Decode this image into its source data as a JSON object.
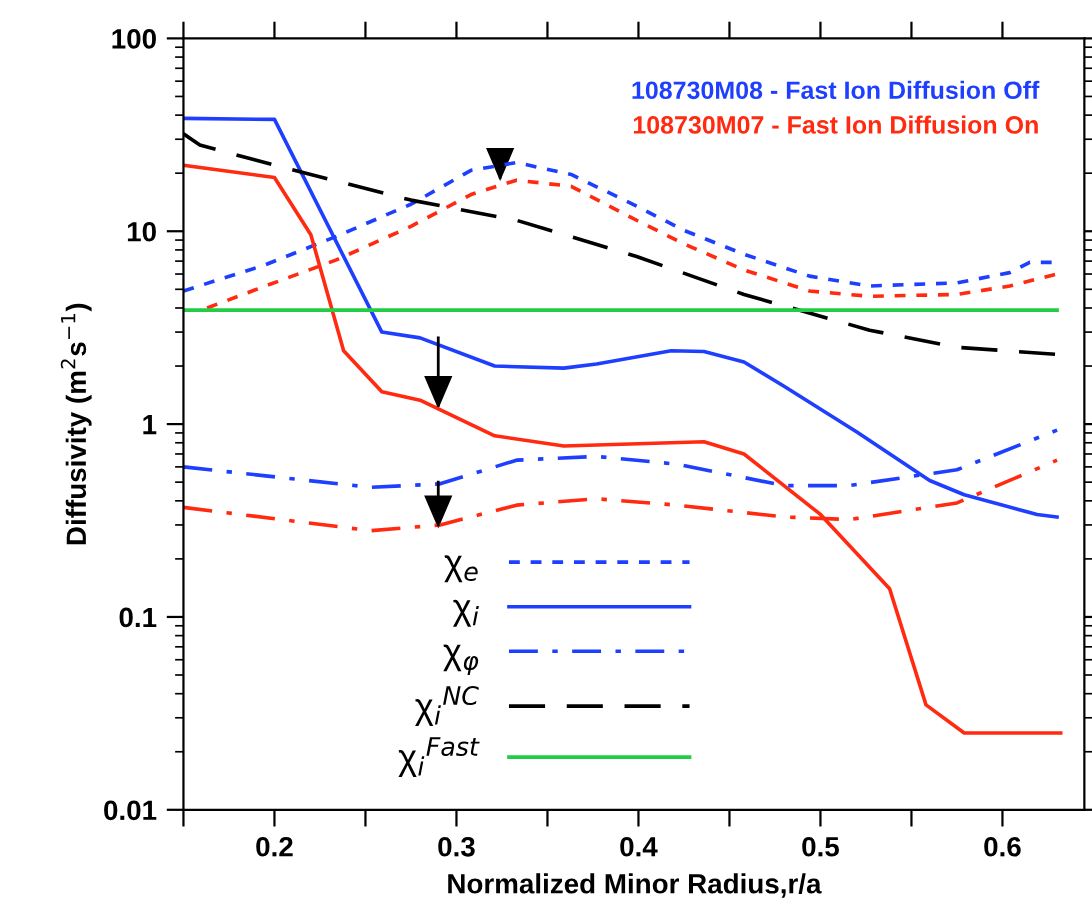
{
  "chart_data": {
    "type": "line",
    "xlabel": "Normalized Minor Radius,r/a",
    "ylabel": "Diffusivity (m$^{2}$s$^{−1}$)",
    "log": "y",
    "xlim": [
      0.15,
      0.645
    ],
    "ylim": [
      0.01,
      100
    ],
    "xticks": [
      {
        "value": 0.15,
        "label": null
      },
      0.2,
      {
        "value": 0.25,
        "label": null
      },
      0.3,
      {
        "value": 0.35,
        "label": null
      },
      0.4,
      {
        "value": 0.45,
        "label": null
      },
      0.5,
      {
        "value": 0.55,
        "label": null
      },
      0.6
    ],
    "yticks": [
      0.01,
      0.1,
      1,
      10,
      100
    ],
    "grid": false,
    "legend": "bottom",
    "annotations": [
      "108730M08 - Fast Ion Diffusion Off",
      "108730M07 - Fast Ion Diffusion On"
    ],
    "series": [
      {
        "name": "χ$_{e}$",
        "color": "#1f3fff",
        "line_style": "dashed",
        "x": [
          0.15,
          0.195,
          0.234,
          0.275,
          0.308,
          0.333,
          0.363,
          0.399,
          0.425,
          0.458,
          0.494,
          0.527,
          0.575,
          0.604,
          0.615,
          0.63
        ],
        "values": [
          4.9,
          6.7,
          9.4,
          13.8,
          20.7,
          22.7,
          19.7,
          13.5,
          10.1,
          7.6,
          5.85,
          5.2,
          5.4,
          6.1,
          6.9,
          6.9
        ]
      },
      {
        "color": "#ff2a10",
        "line_style": "dashed",
        "x": [
          0.163,
          0.195,
          0.234,
          0.275,
          0.308,
          0.333,
          0.363,
          0.399,
          0.425,
          0.458,
          0.494,
          0.527,
          0.575,
          0.604,
          0.63
        ],
        "values": [
          4.0,
          5.2,
          7.1,
          10.6,
          15.5,
          18.4,
          17.1,
          11.4,
          8.6,
          6.3,
          4.9,
          4.6,
          4.7,
          5.2,
          6.0
        ]
      },
      {
        "name": "χ$_{i}$",
        "color": "#1f3fff",
        "line_style": "solid",
        "x": [
          0.15,
          0.2,
          0.259,
          0.28,
          0.321,
          0.359,
          0.377,
          0.418,
          0.436,
          0.458,
          0.48,
          0.52,
          0.56,
          0.579,
          0.619,
          0.63
        ],
        "values": [
          38.5,
          38,
          3.0,
          2.8,
          2.0,
          1.95,
          2.05,
          2.4,
          2.38,
          2.1,
          1.57,
          0.91,
          0.51,
          0.43,
          0.34,
          0.33
        ]
      },
      {
        "color": "#ff2a10",
        "line_style": "solid",
        "x": [
          0.15,
          0.2,
          0.22,
          0.238,
          0.259,
          0.28,
          0.321,
          0.359,
          0.418,
          0.436,
          0.458,
          0.5,
          0.538,
          0.558,
          0.579,
          0.632
        ],
        "values": [
          22,
          19,
          9.6,
          2.4,
          1.47,
          1.33,
          0.87,
          0.77,
          0.8,
          0.81,
          0.7,
          0.34,
          0.14,
          0.035,
          0.025,
          0.025
        ]
      },
      {
        "name": "χ$_{φ}$",
        "color": "#1f3fff",
        "line_style": "dashdot",
        "x": [
          0.15,
          0.253,
          0.291,
          0.333,
          0.377,
          0.421,
          0.48,
          0.516,
          0.575,
          0.63
        ],
        "values": [
          0.6,
          0.47,
          0.49,
          0.65,
          0.68,
          0.62,
          0.48,
          0.48,
          0.58,
          0.93
        ]
      },
      {
        "color": "#ff2a10",
        "line_style": "dashdot",
        "x": [
          0.15,
          0.253,
          0.291,
          0.333,
          0.377,
          0.421,
          0.48,
          0.516,
          0.575,
          0.63
        ],
        "values": [
          0.37,
          0.28,
          0.3,
          0.38,
          0.41,
          0.38,
          0.33,
          0.32,
          0.39,
          0.65
        ]
      },
      {
        "name": "χ$_{i}$$^{NC}$",
        "color": "#000000",
        "line_style": "longdash",
        "x": [
          0.15,
          0.159,
          0.2,
          0.275,
          0.333,
          0.399,
          0.458,
          0.527,
          0.575,
          0.63
        ],
        "values": [
          32,
          28,
          22,
          14.5,
          11.4,
          7.4,
          4.7,
          3.07,
          2.5,
          2.3
        ]
      },
      {
        "name": "χ$_{i}$$^{Fast}$",
        "color": "#22cc44",
        "line_style": "solid",
        "x": [
          0.15,
          0.63
        ],
        "values": [
          3.9,
          3.9
        ]
      }
    ]
  }
}
